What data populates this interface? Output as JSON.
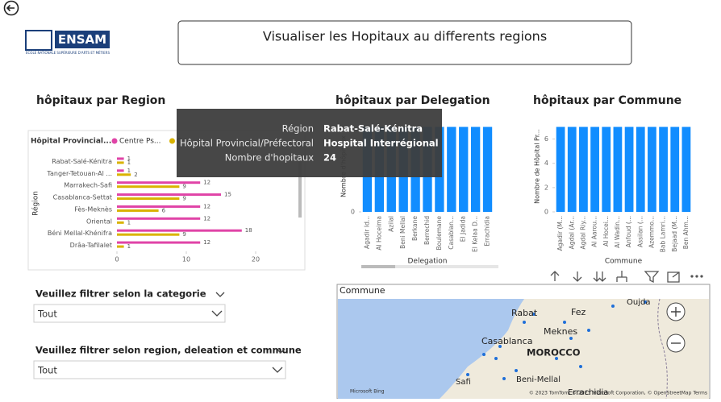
{
  "header": {
    "title": "Visualiser les Hopitaux au differents regions",
    "logo": "ENSAM",
    "logo_sub": "ÉCOLE NATIONALE SUPÉRIEURE D'ARTS ET MÉTIERS"
  },
  "chart_data": [
    {
      "type": "bar",
      "orientation": "horizontal",
      "title": "hôpitaux par Region",
      "legend_title": "Hôpital Provincial...",
      "y_label": "Région",
      "categories": [
        "Rabat-Salé-Kénitra",
        "Tanger-Tetouan-Al ...",
        "Marrakech-Safi",
        "Casablanca-Settat",
        "Fès-Meknès",
        "Oriental",
        "Béni Mellal-Khénifra",
        "Drâa-Tafilalet"
      ],
      "series": [
        {
          "name": "Centre Ps...",
          "color": "#e044a7",
          "values": [
            1,
            1,
            12,
            15,
            12,
            12,
            18,
            12
          ]
        },
        {
          "name": "Cen...",
          "color": "#d9b300",
          "values": [
            1,
            2,
            9,
            9,
            6,
            1,
            9,
            1
          ]
        }
      ],
      "xlim": [
        0,
        21
      ],
      "xticks": [
        0,
        10,
        20
      ]
    },
    {
      "type": "bar",
      "title": "hôpitaux par Delegation",
      "x_label": "Delegation",
      "y_label": "Nombre d'hôpitaux",
      "color": "#118dff",
      "categories": [
        "Agadir Id...",
        "Al Hoceima",
        "Azilal",
        "Beni Mellal",
        "Berkane",
        "Berrechid",
        "Boulemane",
        "Casablan...",
        "El Jadida",
        "El Kelaa D...",
        "Errachidia"
      ],
      "values": [
        7,
        7,
        7,
        7,
        7,
        7,
        7,
        7,
        7,
        7,
        7
      ],
      "ylim": [
        0,
        7.5
      ],
      "yticks": [
        0
      ]
    },
    {
      "type": "bar",
      "title": "hôpitaux par Commune",
      "x_label": "Commune",
      "y_label": "Nombre de Hôpital Pr...",
      "color": "#118dff",
      "categories": [
        "Agadir (M...",
        "Agdal (Ar...",
        "Agdal Riy...",
        "Al Aarou...",
        "Al Hocei...",
        "Al Wadin...",
        "Anfoud (...",
        "Assilan (...",
        "Azemmo...",
        "Bab Lamri...",
        "Bejaad (M...",
        "Ben Ahm..."
      ],
      "values": [
        7,
        7,
        7,
        7,
        7,
        7,
        7,
        7,
        7,
        7,
        7,
        7
      ],
      "ylim": [
        0,
        7.5
      ],
      "yticks": [
        0,
        2,
        4,
        6
      ]
    }
  ],
  "tooltip": {
    "rows": [
      {
        "label": "Région",
        "value": "Rabat-Salé-Kénitra"
      },
      {
        "label": "Hôpital Provincial/Préfectoral",
        "value": "Hospital Interrégional"
      },
      {
        "label": "Nombre d'hopitaux",
        "value": 24
      }
    ]
  },
  "filters": [
    {
      "label": "Veuillez filtrer selon la categorie",
      "value": "Tout"
    },
    {
      "label": "Veuillez filtrer selon region, deleation et commune",
      "value": "Tout"
    }
  ],
  "map": {
    "title": "Commune",
    "places": [
      "Rabat",
      "Fez",
      "Oujda",
      "Casablanca",
      "Meknes",
      "MOROCCO",
      "Beni-Mellal",
      "Safi",
      "Errachidia"
    ],
    "brand": "Microsoft Bing",
    "credits": "© 2023 TomTom, © 2023 Microsoft Corporation, © OpenStreetMap  Terms"
  }
}
